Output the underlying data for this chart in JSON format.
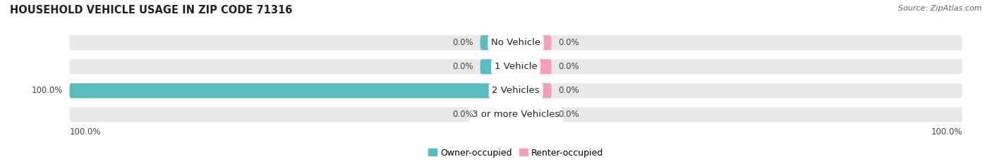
{
  "title": "HOUSEHOLD VEHICLE USAGE IN ZIP CODE 71316",
  "source": "Source: ZipAtlas.com",
  "categories": [
    "No Vehicle",
    "1 Vehicle",
    "2 Vehicles",
    "3 or more Vehicles"
  ],
  "owner_values": [
    0.0,
    0.0,
    100.0,
    0.0
  ],
  "renter_values": [
    0.0,
    0.0,
    0.0,
    0.0
  ],
  "owner_color": "#5bbcbf",
  "renter_color": "#f5a0b8",
  "bar_bg_color": "#e8e8e8",
  "bar_height": 0.62,
  "xlim": [
    -100,
    100
  ],
  "owner_label": "Owner-occupied",
  "renter_label": "Renter-occupied",
  "title_fontsize": 10.5,
  "source_fontsize": 8,
  "label_fontsize": 8.5,
  "cat_fontsize": 9.5,
  "legend_fontsize": 9,
  "axis_label_left": "100.0%",
  "axis_label_right": "100.0%",
  "min_bar_width": 8,
  "figsize": [
    14.06,
    2.33
  ],
  "dpi": 100
}
